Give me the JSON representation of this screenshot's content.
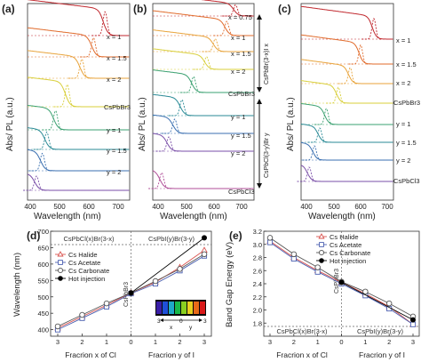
{
  "figure": {
    "panels": {
      "a": {
        "letter": "(a)",
        "ylabel": "Abs/ PL (a.u.)",
        "xlabel": "Wavelength (nm)",
        "xticks": [
          "400",
          "500",
          "600",
          "700"
        ],
        "labels": [
          "x = 1",
          "x = 1.5",
          "x = 2",
          "CsPbBr3",
          "y = 1",
          "y = 1.5",
          "y = 2"
        ]
      },
      "b": {
        "letter": "(b)",
        "ylabel": "Abs/ PL (a.u.)",
        "xlabel": "Wavelength (nm)",
        "xticks": [
          "400",
          "500",
          "600",
          "700"
        ],
        "labels": [
          "x = 0.75",
          "x = 1",
          "x = 1.5",
          "x = 2",
          "CsPbBr3",
          "y = 1",
          "y = 1.5",
          "y = 2",
          "CsPbCl3"
        ],
        "bracket_top": "CsPbBr(3-x)I x",
        "bracket_bottom": "CsPbCl(3-y)Br y"
      },
      "c": {
        "letter": "(c)",
        "ylabel": "Abs/ PL (a.u.)",
        "xlabel": "Wavelength (nm)",
        "xticks": [
          "400",
          "500",
          "600",
          "700"
        ],
        "labels": [
          "x = 1",
          "x = 1.5",
          "x = 2",
          "CsPbBr3",
          "y = 1",
          "y = 1.5",
          "y = 2",
          "CsPbCl3"
        ]
      }
    },
    "colors": {
      "spectra": [
        "#c0272d",
        "#e06a2a",
        "#e8a33a",
        "#d8cf3a",
        "#3aa070",
        "#2a8a96",
        "#3a6fb0",
        "#7a4fa8",
        "#b04e98"
      ]
    }
  },
  "chart_data": [
    {
      "panel": "(d)",
      "type": "line",
      "xlabel_left": "Fracrion x of Cl",
      "xlabel_right": "Fracrion y of I",
      "ylabel": "Wavelength (nm)",
      "top_left": "CsPbCl(x)Br(3-x)",
      "top_right": "CsPbI(y)Br(3-y)",
      "center_label": "CsPbBr3",
      "xticks": [
        "3",
        "2",
        "1",
        "0",
        "1",
        "2",
        "3"
      ],
      "ylim": [
        380,
        700
      ],
      "yticks": [
        400,
        450,
        500,
        550,
        600,
        650,
        700
      ],
      "x": [
        -3,
        -2,
        -1,
        0,
        1,
        2,
        3
      ],
      "series": [
        {
          "name": "Cs Halide",
          "marker": "triangle",
          "color": "#d9534f",
          "values": [
            405,
            440,
            475,
            512,
            545,
            590,
            642
          ]
        },
        {
          "name": "Cs Acetate",
          "marker": "square",
          "color": "#4a5fb0",
          "values": [
            400,
            435,
            470,
            510,
            540,
            580,
            625
          ]
        },
        {
          "name": "Cs Carbonate",
          "marker": "circle",
          "color": "#555555",
          "values": [
            410,
            445,
            480,
            512,
            548,
            585,
            630
          ]
        },
        {
          "name": "Hot injection",
          "marker": "filled-circle",
          "color": "#000000",
          "values": [
            null,
            null,
            null,
            512,
            null,
            null,
            680
          ]
        }
      ],
      "inset": {
        "arrow_left": "3",
        "arrow_mid": "0",
        "arrow_right": "3",
        "x_label": "x",
        "y_label": "y"
      }
    },
    {
      "panel": "(e)",
      "type": "line",
      "xlabel_left": "Fracrion x of Cl",
      "xlabel_right": "Fracrion y of I",
      "ylabel": "Band Gap Energy (eV)",
      "top_label": "CsPbBr3",
      "bottom_left": "CsPbCl(x)Br(3-x)",
      "bottom_right": "CsPbI(y)Br(3-y)",
      "xticks": [
        "3",
        "2",
        "1",
        "0",
        "1",
        "2",
        "3"
      ],
      "ylim": [
        1.6,
        3.2
      ],
      "yticks": [
        1.8,
        2.0,
        2.2,
        2.4,
        2.6,
        2.8,
        3.0,
        3.2
      ],
      "x": [
        -3,
        -2,
        -1,
        0,
        1,
        2,
        3
      ],
      "series": [
        {
          "name": "Cs Halide",
          "marker": "triangle",
          "color": "#d9534f",
          "values": [
            3.05,
            2.8,
            2.6,
            2.42,
            2.25,
            2.05,
            1.78
          ]
        },
        {
          "name": "Cs Acetate",
          "marker": "square",
          "color": "#4a5fb0",
          "values": [
            3.03,
            2.78,
            2.58,
            2.4,
            2.22,
            2.02,
            1.78
          ]
        },
        {
          "name": "Cs Carbonate",
          "marker": "circle",
          "color": "#555555",
          "values": [
            3.1,
            2.85,
            2.65,
            2.43,
            2.28,
            2.1,
            1.9
          ]
        },
        {
          "name": "Hot injection",
          "marker": "filled-circle",
          "color": "#000000",
          "values": [
            null,
            null,
            null,
            2.42,
            null,
            null,
            1.85
          ]
        }
      ]
    }
  ]
}
